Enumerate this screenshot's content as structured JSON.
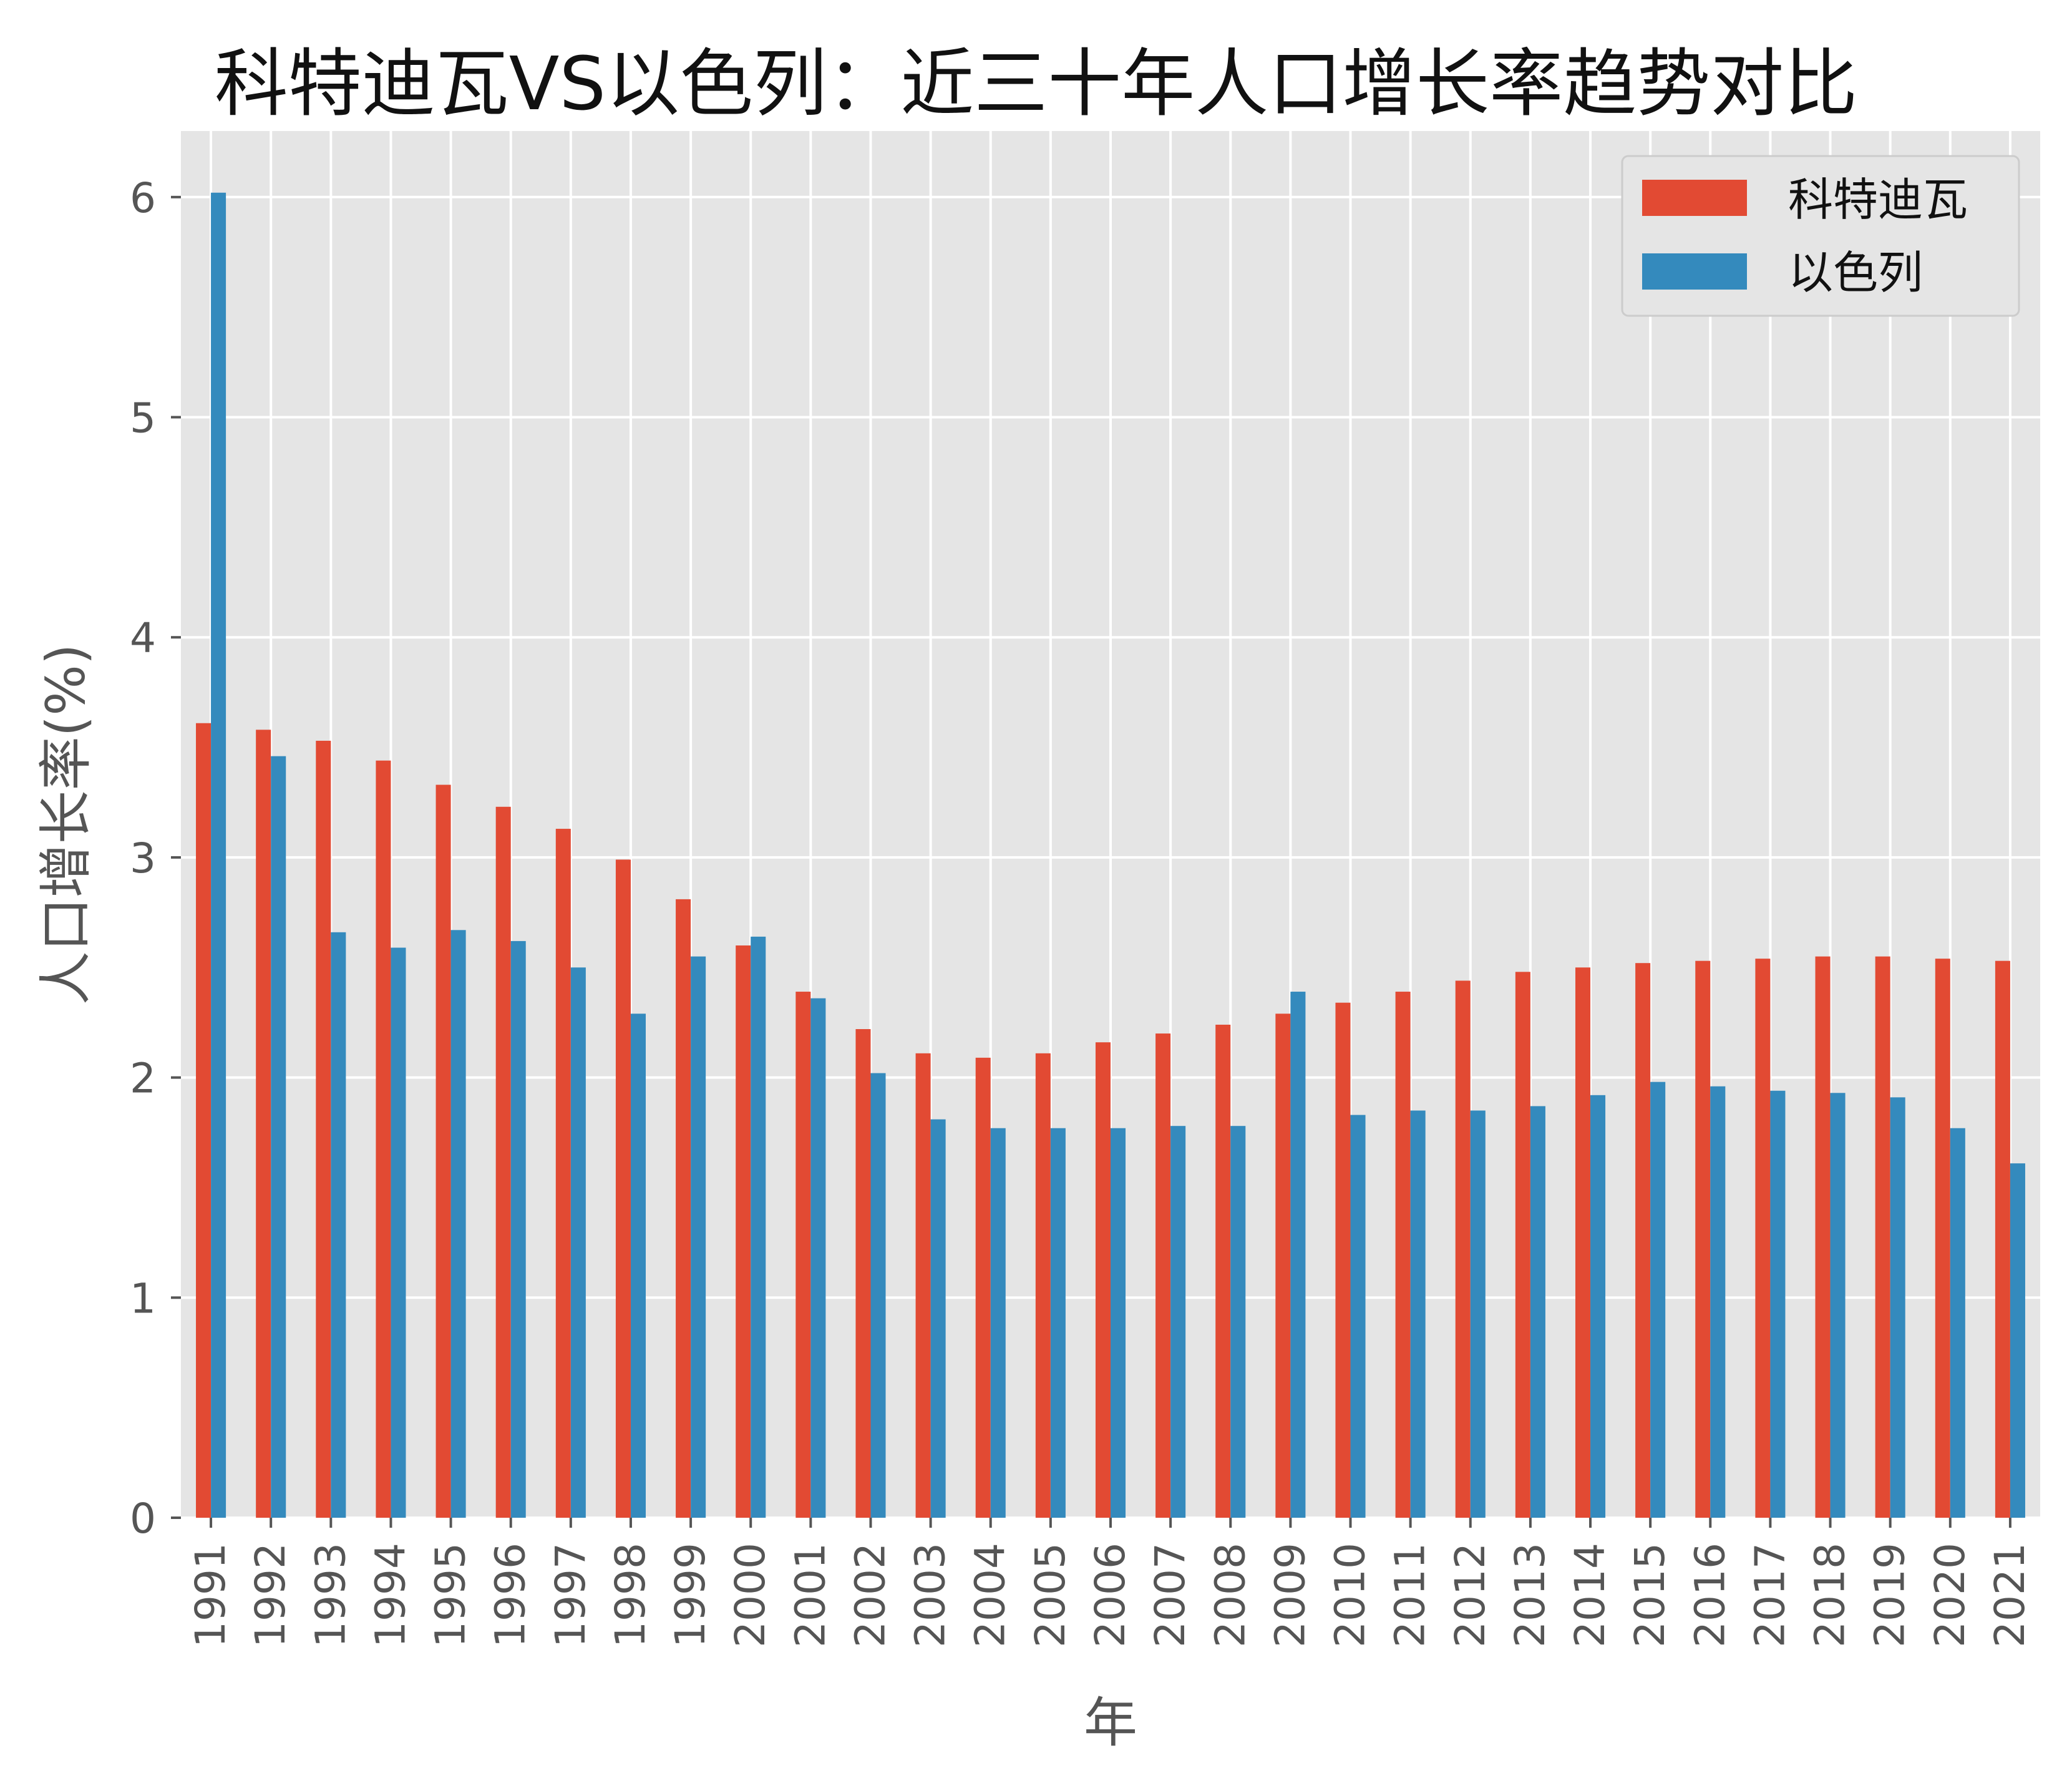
{
  "chart_data": {
    "type": "bar",
    "title": "科特迪瓦VS以色列：近三十年人口增长率趋势对比",
    "xlabel": "年",
    "ylabel": "人口增长率(%)",
    "ylim": [
      0,
      6.3
    ],
    "yticks": [
      "0",
      "1",
      "2",
      "3",
      "4",
      "5",
      "6"
    ],
    "grid": true,
    "legend_position": "top-right",
    "categories": [
      "1991",
      "1992",
      "1993",
      "1994",
      "1995",
      "1996",
      "1997",
      "1998",
      "1999",
      "2000",
      "2001",
      "2002",
      "2003",
      "2004",
      "2005",
      "2006",
      "2007",
      "2008",
      "2009",
      "2010",
      "2011",
      "2012",
      "2013",
      "2014",
      "2015",
      "2016",
      "2017",
      "2018",
      "2019",
      "2020",
      "2021"
    ],
    "series": [
      {
        "name": "科特迪瓦",
        "color": "#E24A33",
        "values": [
          3.61,
          3.58,
          3.53,
          3.44,
          3.33,
          3.23,
          3.13,
          2.99,
          2.81,
          2.6,
          2.39,
          2.22,
          2.11,
          2.09,
          2.11,
          2.16,
          2.2,
          2.24,
          2.29,
          2.34,
          2.39,
          2.44,
          2.48,
          2.5,
          2.52,
          2.53,
          2.54,
          2.55,
          2.55,
          2.54,
          2.53
        ]
      },
      {
        "name": "以色列",
        "color": "#348ABD",
        "values": [
          6.02,
          3.46,
          2.66,
          2.59,
          2.67,
          2.62,
          2.5,
          2.29,
          2.55,
          2.64,
          2.36,
          2.02,
          1.81,
          1.77,
          1.77,
          1.77,
          1.78,
          1.78,
          2.39,
          1.83,
          1.85,
          1.85,
          1.87,
          1.92,
          1.98,
          1.96,
          1.94,
          1.93,
          1.91,
          1.77,
          1.61
        ]
      }
    ]
  },
  "colors": {
    "plot_background": "#E5E5E5",
    "grid": "#FFFFFF",
    "tick_text": "#555555"
  }
}
